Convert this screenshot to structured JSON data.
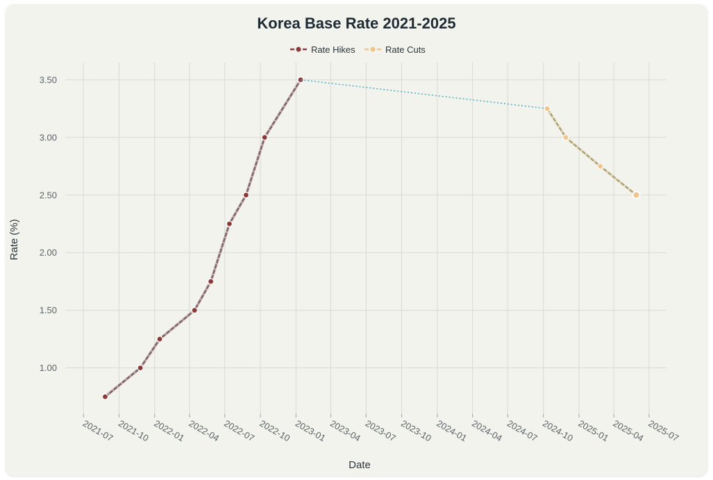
{
  "title": "Korea Base Rate 2021-2025",
  "legend": {
    "hikes_label": "Rate Hikes",
    "cuts_label": "Rate Cuts"
  },
  "colors": {
    "hikes": "#8b3a3a",
    "hikes_line": "#7d6a6e",
    "cuts": "#f0c48a",
    "cuts_line": "#a9a67c",
    "bridge": "#4fb0c6",
    "grid": "#d9d9d4"
  },
  "chart_data": {
    "type": "line",
    "title": "Korea Base Rate 2021-2025",
    "xlabel": "Date",
    "ylabel": "Rate (%)",
    "ylim": [
      0.6,
      3.65
    ],
    "xlim": [
      "2021-05-15",
      "2025-08-15"
    ],
    "grid": true,
    "legend_position": "top-center",
    "y_ticks": [
      "1.00",
      "1.50",
      "2.00",
      "2.50",
      "3.00",
      "3.50"
    ],
    "x_ticks": [
      "2021-07",
      "2021-10",
      "2022-01",
      "2022-04",
      "2022-07",
      "2022-10",
      "2023-01",
      "2023-04",
      "2023-07",
      "2023-10",
      "2024-01",
      "2024-04",
      "2024-07",
      "2024-10",
      "2025-01",
      "2025-04",
      "2025-07"
    ],
    "series": [
      {
        "name": "Rate Hikes",
        "style": "dashed-with-markers",
        "points": [
          {
            "x": "2021-08-26",
            "y": 0.75
          },
          {
            "x": "2021-11-25",
            "y": 1.0
          },
          {
            "x": "2022-01-14",
            "y": 1.25
          },
          {
            "x": "2022-04-14",
            "y": 1.5
          },
          {
            "x": "2022-05-26",
            "y": 1.75
          },
          {
            "x": "2022-07-13",
            "y": 2.25
          },
          {
            "x": "2022-08-25",
            "y": 2.5
          },
          {
            "x": "2022-10-12",
            "y": 3.0
          },
          {
            "x": "2023-01-13",
            "y": 3.5
          }
        ]
      },
      {
        "name": "",
        "style": "dotted",
        "points": [
          {
            "x": "2023-01-13",
            "y": 3.5
          },
          {
            "x": "2024-10-11",
            "y": 3.25
          }
        ]
      },
      {
        "name": "Rate Cuts",
        "style": "dashed-with-markers",
        "points": [
          {
            "x": "2024-10-11",
            "y": 3.25
          },
          {
            "x": "2024-11-28",
            "y": 3.0
          },
          {
            "x": "2025-02-25",
            "y": 2.75
          },
          {
            "x": "2025-05-29",
            "y": 2.5
          }
        ]
      }
    ]
  }
}
